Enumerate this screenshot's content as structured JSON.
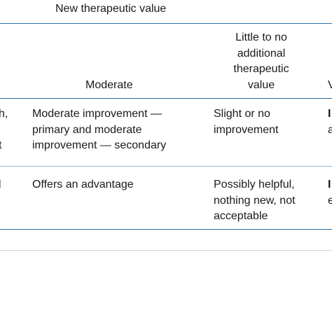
{
  "table": {
    "group_header": "New therapeutic value",
    "columns": {
      "moderate": "Moderate",
      "little": [
        "Little to no",
        "additional",
        "therapeutic",
        "value"
      ],
      "right_edge": "V"
    },
    "left_clip_row1": [
      "h,",
      "",
      "t"
    ],
    "left_clip_row2": [
      "l"
    ],
    "rows": [
      {
        "moderate": [
          "Moderate improvement —",
          "primary and moderate",
          "improvement — secondary"
        ],
        "little": [
          "Slight or no",
          "improvement"
        ],
        "right_edge": [
          "I",
          "a"
        ]
      },
      {
        "moderate": [
          "Offers an advantage"
        ],
        "little": [
          "Possibly helpful,",
          "nothing new, not",
          "acceptable"
        ],
        "right_edge": [
          "I",
          "e"
        ]
      }
    ]
  }
}
